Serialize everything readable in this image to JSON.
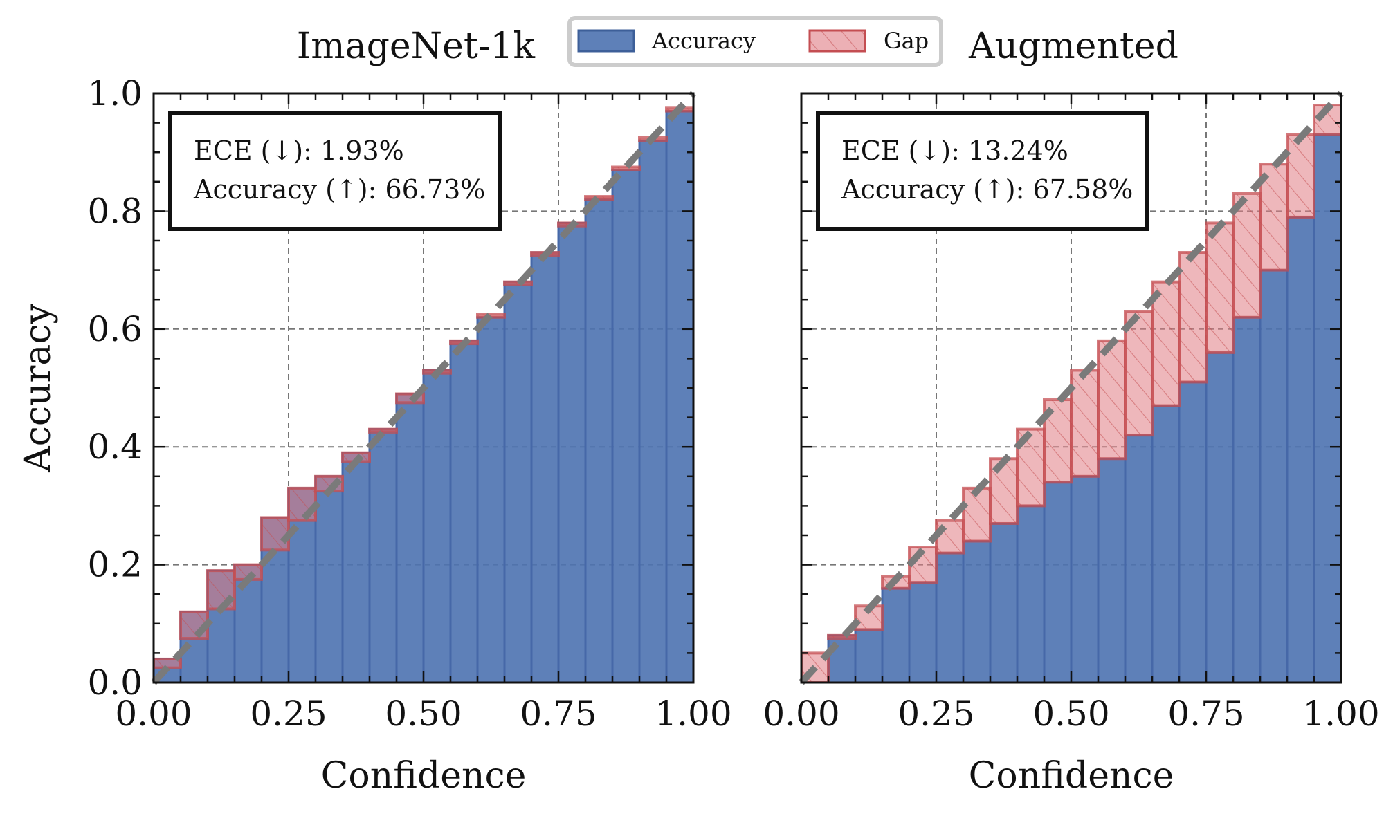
{
  "legend": {
    "accuracy_label": "Accuracy",
    "gap_label": "Gap",
    "accuracy_color": "#4c72b0",
    "gap_color": "#e07b83"
  },
  "chart_data": [
    {
      "type": "bar",
      "title": "ImageNet-1k",
      "xlabel": "Confidence",
      "ylabel": "Accuracy",
      "xlim": [
        0,
        1
      ],
      "ylim": [
        0,
        1
      ],
      "xticks": [
        "0.00",
        "0.25",
        "0.50",
        "0.75",
        "1.00"
      ],
      "yticks": [
        "0.0",
        "0.2",
        "0.4",
        "0.6",
        "0.8",
        "1.0"
      ],
      "annotation": [
        "ECE (↓): 1.93%",
        "Accuracy (↑): 66.73%"
      ],
      "bin_width": 0.05,
      "bins": [
        0.0,
        0.05,
        0.1,
        0.15,
        0.2,
        0.25,
        0.3,
        0.35,
        0.4,
        0.45,
        0.5,
        0.55,
        0.6,
        0.65,
        0.7,
        0.75,
        0.8,
        0.85,
        0.9,
        0.95
      ],
      "series": [
        {
          "name": "Accuracy",
          "values": [
            0.04,
            0.12,
            0.19,
            0.2,
            0.28,
            0.33,
            0.35,
            0.39,
            0.43,
            0.49,
            0.53,
            0.58,
            0.62,
            0.68,
            0.73,
            0.78,
            0.82,
            0.87,
            0.92,
            0.97
          ]
        },
        {
          "name": "Gap",
          "values": [
            0.025,
            0.075,
            0.125,
            0.175,
            0.225,
            0.275,
            0.325,
            0.375,
            0.425,
            0.475,
            0.525,
            0.575,
            0.625,
            0.675,
            0.725,
            0.775,
            0.825,
            0.875,
            0.925,
            0.975
          ]
        }
      ]
    },
    {
      "type": "bar",
      "title": "Augmented",
      "xlabel": "Confidence",
      "ylabel": "",
      "xlim": [
        0,
        1
      ],
      "ylim": [
        0,
        1
      ],
      "xticks": [
        "0.00",
        "0.25",
        "0.50",
        "0.75",
        "1.00"
      ],
      "yticks": [
        "0.0",
        "0.2",
        "0.4",
        "0.6",
        "0.8",
        "1.0"
      ],
      "annotation": [
        "ECE (↓): 13.24%",
        "Accuracy (↑): 67.58%"
      ],
      "bin_width": 0.05,
      "bins": [
        0.0,
        0.05,
        0.1,
        0.15,
        0.2,
        0.25,
        0.3,
        0.35,
        0.4,
        0.45,
        0.5,
        0.55,
        0.6,
        0.65,
        0.7,
        0.75,
        0.8,
        0.85,
        0.9,
        0.95
      ],
      "series": [
        {
          "name": "Accuracy",
          "values": [
            0.0,
            0.08,
            0.09,
            0.16,
            0.17,
            0.22,
            0.24,
            0.27,
            0.3,
            0.34,
            0.35,
            0.38,
            0.42,
            0.47,
            0.51,
            0.56,
            0.62,
            0.7,
            0.79,
            0.93
          ]
        },
        {
          "name": "Gap",
          "values": [
            0.05,
            0.075,
            0.13,
            0.18,
            0.23,
            0.275,
            0.33,
            0.38,
            0.43,
            0.48,
            0.53,
            0.58,
            0.63,
            0.68,
            0.73,
            0.78,
            0.83,
            0.88,
            0.93,
            0.98
          ]
        }
      ]
    }
  ]
}
